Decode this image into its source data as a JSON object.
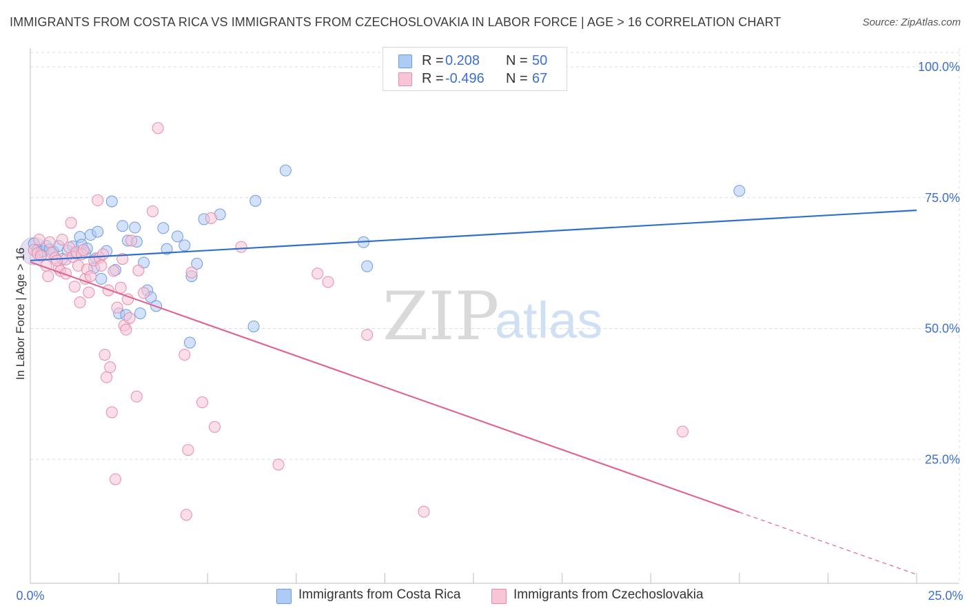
{
  "header": {
    "title": "IMMIGRANTS FROM COSTA RICA VS IMMIGRANTS FROM CZECHOSLOVAKIA IN LABOR FORCE | AGE > 16 CORRELATION CHART",
    "source": "Source: ZipAtlas.com"
  },
  "legend": {
    "r_label": "R =",
    "n_label": "N =",
    "rows": [
      {
        "r": "0.208",
        "n": "50",
        "color": "#aecbf5",
        "border": "#6e9be0"
      },
      {
        "r": "-0.496",
        "n": "67",
        "color": "#f8c5d6",
        "border": "#e98aab"
      }
    ]
  },
  "watermark": {
    "zip": "ZIP",
    "atlas": "atlas"
  },
  "chart_data": {
    "type": "scatter",
    "title": "IMMIGRANTS FROM COSTA RICA VS IMMIGRANTS FROM CZECHOSLOVAKIA IN LABOR FORCE | AGE > 16 CORRELATION CHART",
    "xlabel": "",
    "ylabel": "In Labor Force | Age > 16",
    "xlim": [
      0,
      25
    ],
    "ylim": [
      0,
      105
    ],
    "x_ticks": [
      "0.0%",
      "25.0%"
    ],
    "y_ticks": [
      {
        "value": 25,
        "label": "25.0%"
      },
      {
        "value": 50,
        "label": "50.0%"
      },
      {
        "value": 75,
        "label": "75.0%"
      },
      {
        "value": 100,
        "label": "100.0%"
      }
    ],
    "grid": true,
    "legend_position": "top-center",
    "series": [
      {
        "name": "Immigrants from Costa Rica",
        "color": "#6e9be0",
        "fill": "#aecbf5",
        "line": {
          "x": [
            0,
            25
          ],
          "y": [
            63.0,
            72.6
          ],
          "color": "#2f6fce"
        },
        "points": [
          [
            0.1,
            66.2
          ],
          [
            0.2,
            65.0
          ],
          [
            0.3,
            64.6
          ],
          [
            0.35,
            64.8
          ],
          [
            0.45,
            65.8
          ],
          [
            0.55,
            65.1
          ],
          [
            0.65,
            64.7
          ],
          [
            0.8,
            65.8
          ],
          [
            0.9,
            63.3
          ],
          [
            1.05,
            64.9
          ],
          [
            1.2,
            65.7
          ],
          [
            1.3,
            64.3
          ],
          [
            1.4,
            67.5
          ],
          [
            1.45,
            66.0
          ],
          [
            1.55,
            64.5
          ],
          [
            1.6,
            65.3
          ],
          [
            1.7,
            67.9
          ],
          [
            1.8,
            61.6
          ],
          [
            1.85,
            63.4
          ],
          [
            1.9,
            68.5
          ],
          [
            2.0,
            59.5
          ],
          [
            2.15,
            64.8
          ],
          [
            2.3,
            74.3
          ],
          [
            2.4,
            61.2
          ],
          [
            2.5,
            52.9
          ],
          [
            2.6,
            69.6
          ],
          [
            2.7,
            52.6
          ],
          [
            2.75,
            66.8
          ],
          [
            2.95,
            69.3
          ],
          [
            3.0,
            66.6
          ],
          [
            3.1,
            52.9
          ],
          [
            3.2,
            62.6
          ],
          [
            3.3,
            57.3
          ],
          [
            3.4,
            56.0
          ],
          [
            3.55,
            54.3
          ],
          [
            3.75,
            69.2
          ],
          [
            3.85,
            65.2
          ],
          [
            4.15,
            67.6
          ],
          [
            4.35,
            65.9
          ],
          [
            4.5,
            47.3
          ],
          [
            4.55,
            60.0
          ],
          [
            4.7,
            62.4
          ],
          [
            4.9,
            70.9
          ],
          [
            5.35,
            71.8
          ],
          [
            6.3,
            50.4
          ],
          [
            6.35,
            74.4
          ],
          [
            7.2,
            80.2
          ],
          [
            9.4,
            66.5
          ],
          [
            9.5,
            61.9
          ],
          [
            20.0,
            76.3
          ]
        ]
      },
      {
        "name": "Immigrants from Czechoslovakia",
        "color": "#e98aab",
        "fill": "#f8c5d6",
        "line": {
          "x": [
            0,
            20.0
          ],
          "y": [
            62.7,
            14.9
          ],
          "color": "#e0658f"
        },
        "line_dashed": {
          "x": [
            20.0,
            25
          ],
          "y": [
            14.9,
            3.0
          ]
        },
        "points": [
          [
            0.1,
            65.0
          ],
          [
            0.2,
            64.4
          ],
          [
            0.3,
            63.9
          ],
          [
            0.45,
            62.0
          ],
          [
            0.5,
            60.0
          ],
          [
            0.6,
            64.5
          ],
          [
            0.7,
            63.5
          ],
          [
            0.8,
            61.5
          ],
          [
            0.85,
            61.0
          ],
          [
            0.9,
            67.0
          ],
          [
            1.0,
            63.2
          ],
          [
            1.1,
            65.5
          ],
          [
            1.15,
            70.2
          ],
          [
            1.2,
            63.7
          ],
          [
            1.3,
            64.6
          ],
          [
            1.35,
            62.0
          ],
          [
            1.4,
            55.0
          ],
          [
            1.45,
            64.2
          ],
          [
            1.5,
            65.0
          ],
          [
            1.55,
            59.5
          ],
          [
            1.6,
            61.3
          ],
          [
            1.65,
            56.9
          ],
          [
            1.7,
            60.0
          ],
          [
            1.8,
            63.0
          ],
          [
            1.9,
            74.5
          ],
          [
            1.95,
            63.5
          ],
          [
            2.05,
            64.2
          ],
          [
            2.1,
            45.0
          ],
          [
            2.15,
            40.7
          ],
          [
            2.2,
            57.3
          ],
          [
            2.25,
            42.6
          ],
          [
            2.3,
            34.0
          ],
          [
            2.35,
            61.0
          ],
          [
            2.4,
            21.2
          ],
          [
            2.45,
            54.0
          ],
          [
            2.55,
            57.8
          ],
          [
            2.6,
            63.3
          ],
          [
            2.65,
            50.6
          ],
          [
            2.7,
            49.8
          ],
          [
            2.75,
            55.6
          ],
          [
            2.8,
            52.0
          ],
          [
            2.85,
            66.8
          ],
          [
            3.0,
            37.0
          ],
          [
            3.05,
            61.1
          ],
          [
            3.2,
            56.8
          ],
          [
            3.45,
            72.4
          ],
          [
            3.6,
            88.3
          ],
          [
            4.35,
            45.0
          ],
          [
            4.4,
            14.4
          ],
          [
            4.45,
            26.8
          ],
          [
            4.55,
            60.7
          ],
          [
            4.85,
            35.9
          ],
          [
            5.1,
            71.1
          ],
          [
            5.2,
            31.2
          ],
          [
            5.95,
            65.6
          ],
          [
            7.0,
            24.0
          ],
          [
            8.1,
            60.5
          ],
          [
            8.4,
            58.9
          ],
          [
            9.5,
            48.8
          ],
          [
            11.1,
            15.0
          ],
          [
            18.4,
            30.3
          ],
          [
            0.25,
            67.0
          ],
          [
            0.55,
            66.5
          ],
          [
            1.25,
            58.0
          ],
          [
            2.0,
            62.0
          ],
          [
            0.75,
            63.0
          ],
          [
            1.0,
            60.5
          ]
        ]
      }
    ]
  }
}
